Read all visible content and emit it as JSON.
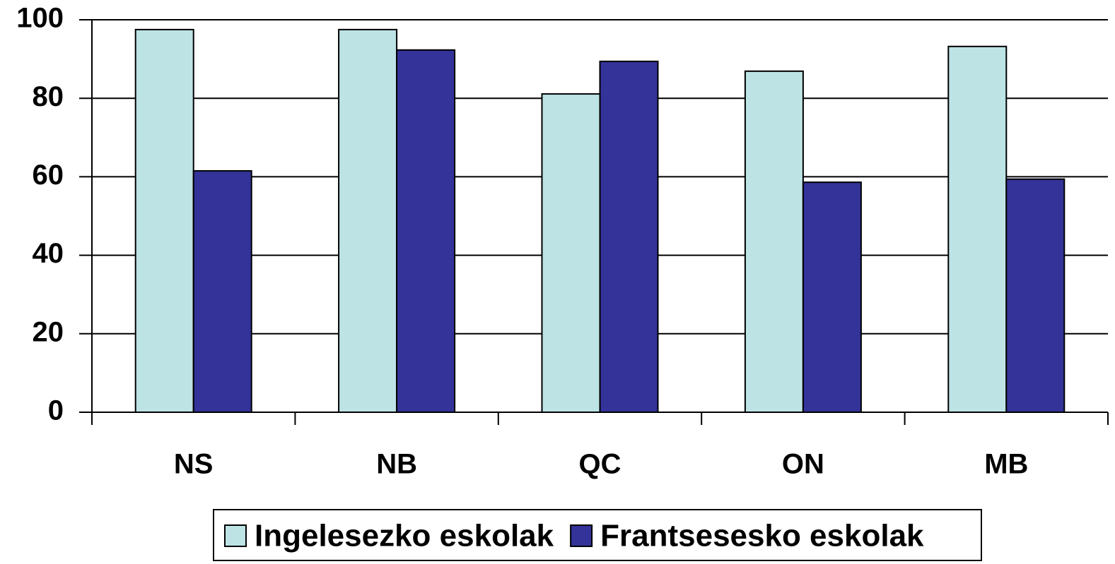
{
  "chart_data": {
    "type": "bar",
    "categories": [
      "NS",
      "NB",
      "QC",
      "ON",
      "MB"
    ],
    "series": [
      {
        "name": "Ingelesezko eskolak",
        "color": "#bde3e5",
        "values": [
          97.5,
          97.5,
          81.1,
          86.9,
          93.2
        ]
      },
      {
        "name": "Frantsesesko eskolak",
        "color": "#333399",
        "values": [
          61.5,
          92.3,
          89.4,
          58.6,
          59.4
        ]
      }
    ],
    "ylim": [
      0,
      100
    ],
    "yticks": [
      0,
      20,
      40,
      60,
      80,
      100
    ],
    "grid": true
  }
}
